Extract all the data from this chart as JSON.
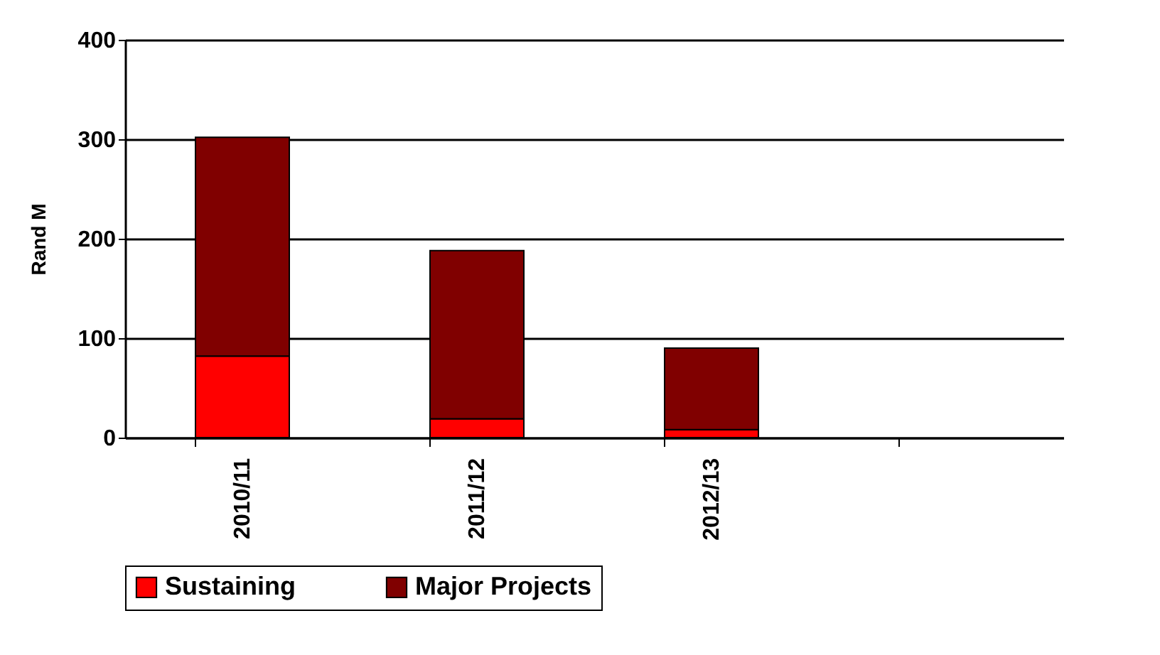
{
  "chart_data": {
    "type": "bar",
    "ylabel": "Rand M",
    "categories": [
      "2010/11",
      "2011/12",
      "2012/13",
      null
    ],
    "stacked": true,
    "series": [
      {
        "name": "Sustaining",
        "color": "#ff0000",
        "values": [
          82,
          19,
          8,
          null
        ]
      },
      {
        "name": "Major Projects",
        "color": "#800000",
        "values": [
          220,
          169,
          82,
          null
        ]
      }
    ],
    "ylim": [
      0,
      400
    ],
    "yticks": [
      0,
      100,
      200,
      300,
      400
    ],
    "grid": "y",
    "legend": "bottom"
  }
}
